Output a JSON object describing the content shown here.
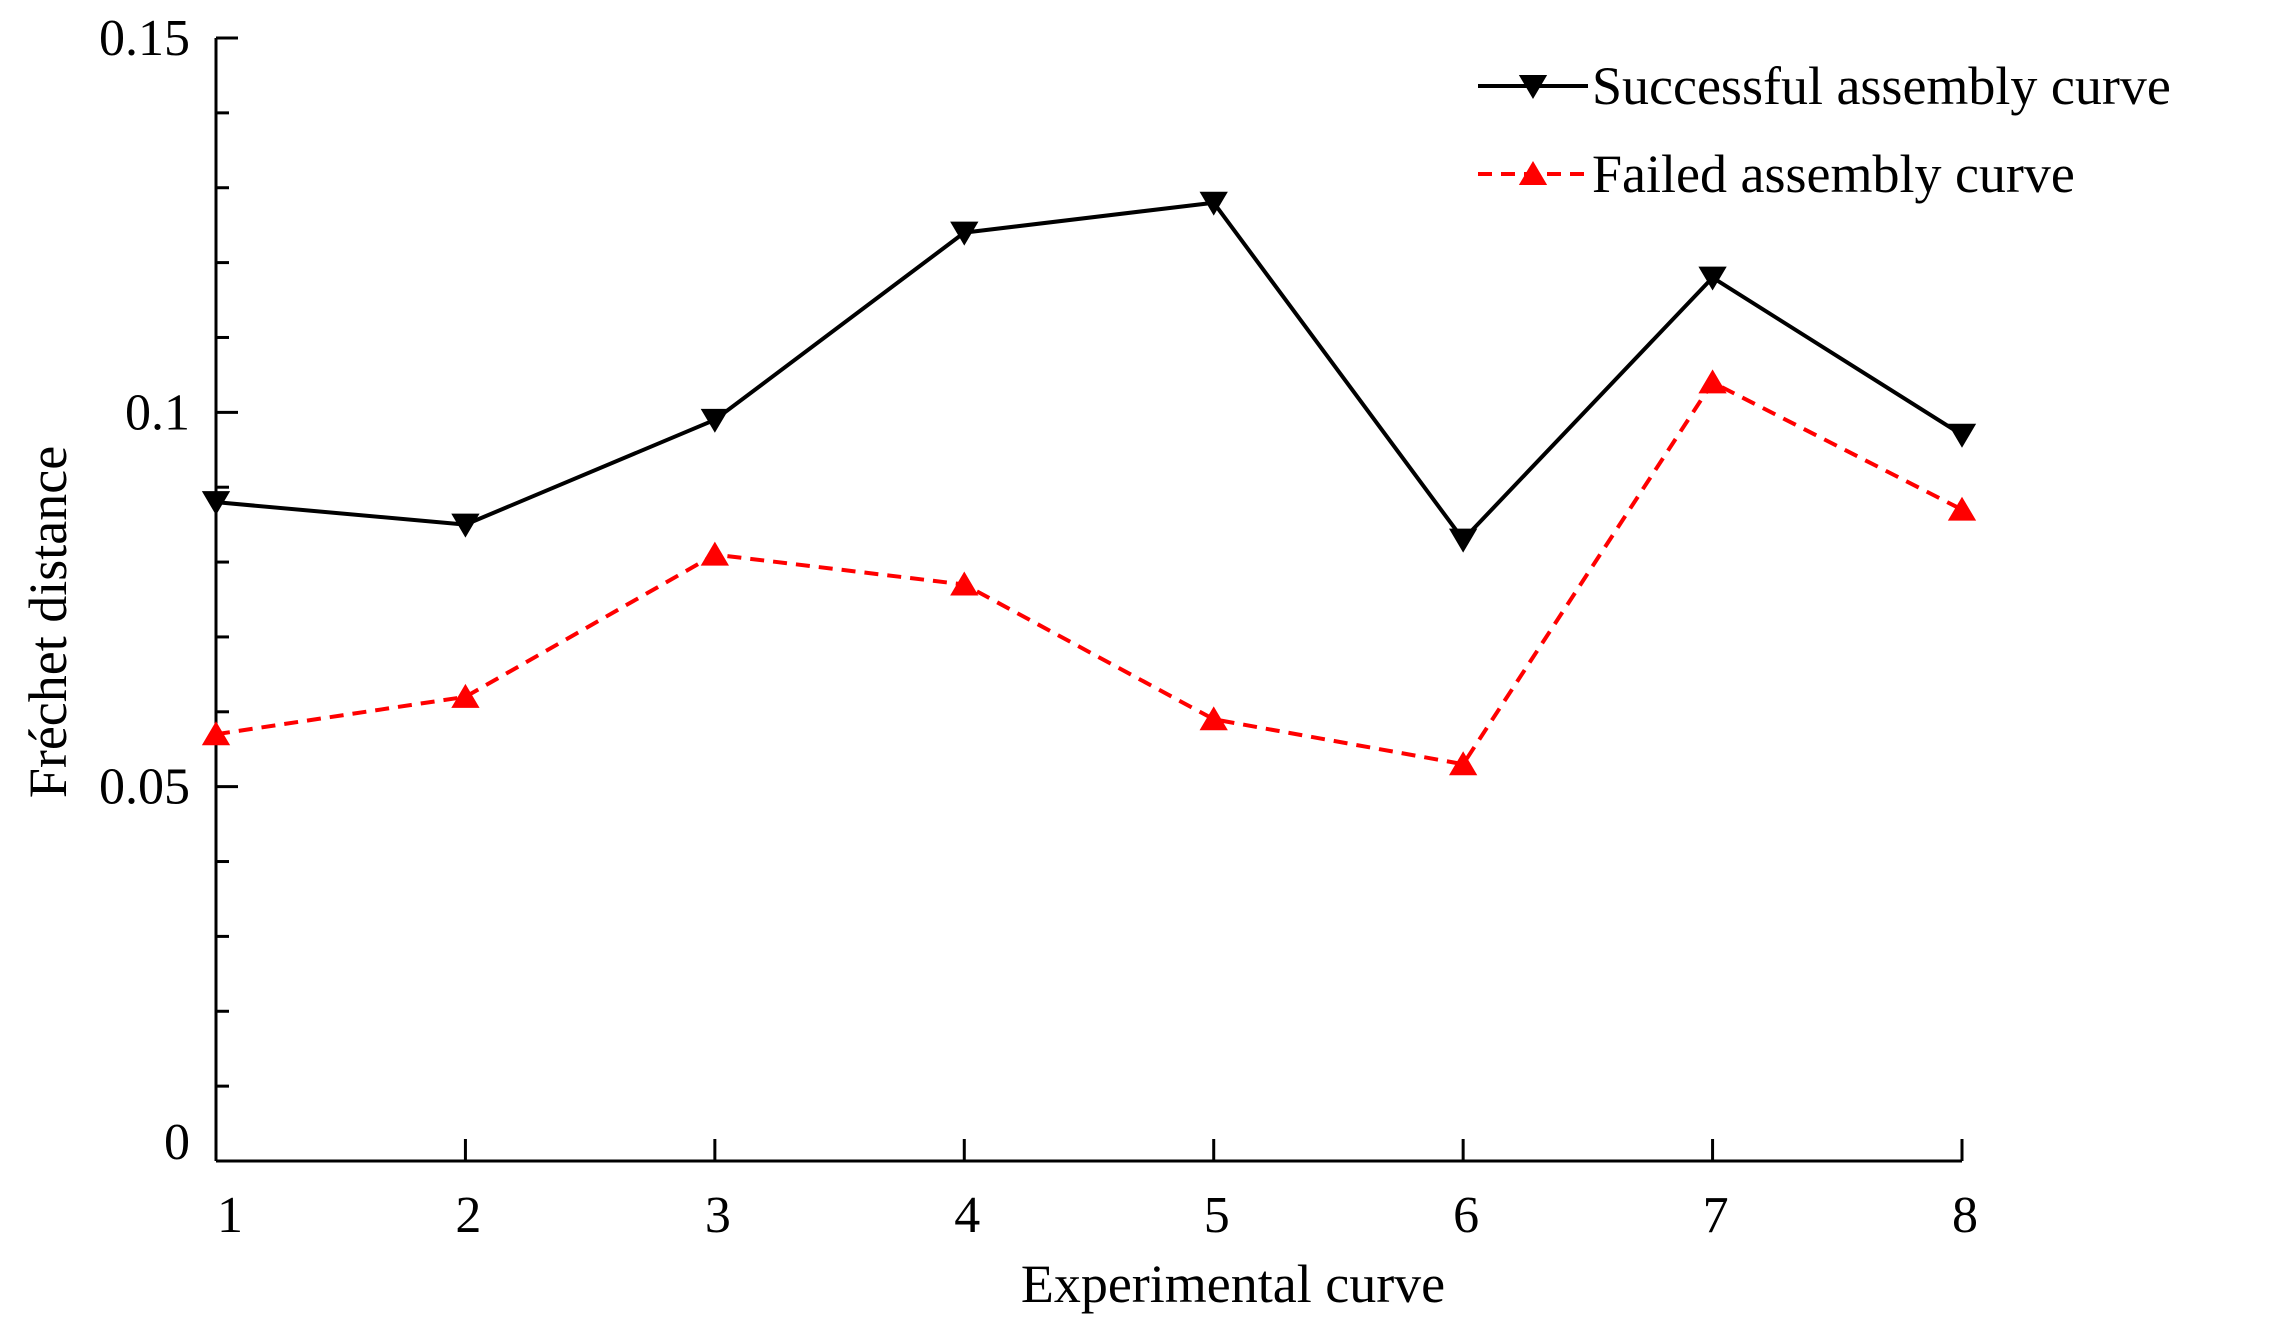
{
  "chart_data": {
    "type": "line",
    "title": "",
    "xlabel": "Experimental curve",
    "ylabel": "Fréchet distance",
    "x": [
      1,
      2,
      3,
      4,
      5,
      6,
      7,
      8
    ],
    "x_tick_labels": [
      "1",
      "2",
      "3",
      "4",
      "5",
      "6",
      "7",
      "8"
    ],
    "xlim": [
      1,
      8
    ],
    "ylim": [
      0,
      0.15
    ],
    "y_ticks": [
      0,
      0.05,
      0.1,
      0.15
    ],
    "y_tick_labels": [
      "0",
      "0.05",
      "0.1",
      "0.15"
    ],
    "y_minor_step": 0.01,
    "grid": false,
    "legend_position": "top-right",
    "series": [
      {
        "name": "Successful assembly curve",
        "values": [
          0.088,
          0.085,
          0.099,
          0.124,
          0.128,
          0.083,
          0.118,
          0.097
        ],
        "color": "#000000",
        "line_style": "solid",
        "marker": "triangle-down",
        "marker_fill": "#000000"
      },
      {
        "name": "Failed assembly curve",
        "values": [
          0.057,
          0.062,
          0.081,
          0.077,
          0.059,
          0.053,
          0.104,
          0.087
        ],
        "color": "#ff0000",
        "line_style": "dashed",
        "marker": "triangle-up",
        "marker_fill": "#ff0000"
      }
    ]
  }
}
